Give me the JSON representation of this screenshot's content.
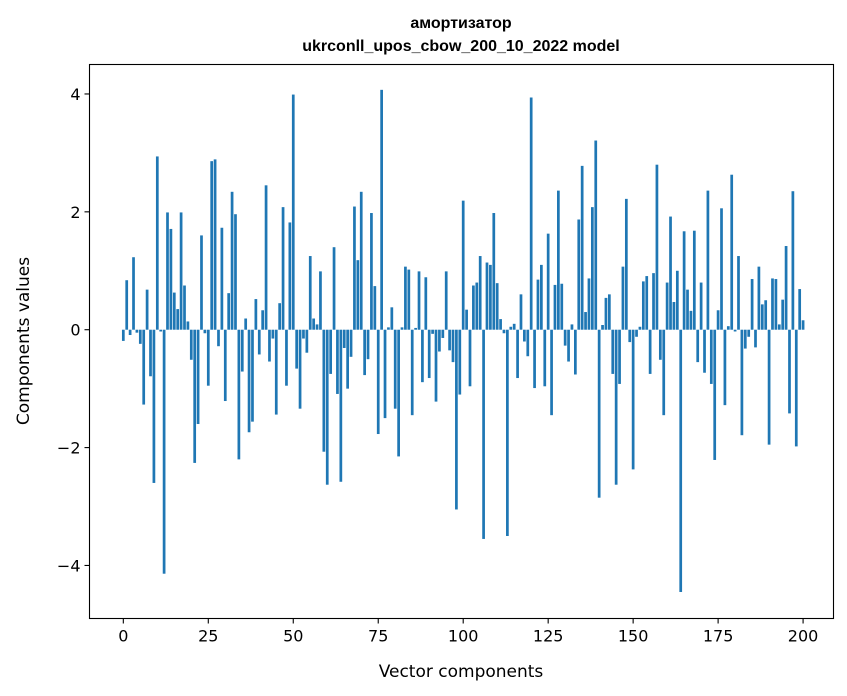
{
  "chart_data": {
    "type": "bar",
    "title": "амортизатор",
    "subtitle": "ukrconll_upos_cbow_200_10_2022 model",
    "xlabel": "Vector components",
    "ylabel": "Components values",
    "xlim": [
      -9.95,
      208.95
    ],
    "ylim": [
      -4.9,
      4.5
    ],
    "xticks": [
      0,
      25,
      50,
      75,
      100,
      125,
      150,
      175,
      200
    ],
    "yticks": [
      -4,
      -2,
      0,
      2,
      4
    ],
    "ytick_labels": [
      "−4",
      "−2",
      "0",
      "2",
      "4"
    ],
    "grid": false,
    "bar_color": "#1f77b4",
    "values": [
      -0.19,
      0.84,
      -0.09,
      1.23,
      -0.05,
      -0.24,
      -1.27,
      0.68,
      -0.79,
      -2.6,
      2.94,
      -0.03,
      -4.14,
      1.99,
      1.71,
      0.63,
      0.35,
      1.99,
      0.75,
      0.14,
      -0.51,
      -2.26,
      -1.6,
      1.6,
      -0.06,
      -0.95,
      2.86,
      2.89,
      -0.28,
      1.73,
      -1.21,
      0.62,
      2.34,
      1.96,
      -2.2,
      -0.71,
      0.19,
      -1.74,
      -1.56,
      0.52,
      -0.42,
      0.33,
      2.45,
      -0.54,
      -0.15,
      -1.44,
      0.45,
      2.08,
      -0.95,
      1.82,
      3.99,
      -0.66,
      -1.34,
      -0.15,
      -0.39,
      1.25,
      0.19,
      0.09,
      0.99,
      -2.07,
      -2.63,
      -0.75,
      1.4,
      -1.09,
      -2.58,
      -0.31,
      -1.0,
      -0.46,
      2.09,
      1.18,
      2.34,
      -0.77,
      -0.5,
      1.98,
      0.74,
      -1.77,
      4.07,
      -1.5,
      0.04,
      0.38,
      -1.34,
      -2.15,
      0.04,
      1.07,
      1.02,
      -1.45,
      0.03,
      0.99,
      -0.89,
      0.89,
      -0.82,
      -0.07,
      -1.22,
      -0.37,
      -0.14,
      0.99,
      -0.35,
      -0.55,
      -3.05,
      -1.1,
      2.19,
      0.34,
      -0.96,
      0.75,
      0.8,
      1.25,
      -3.55,
      1.14,
      1.1,
      1.98,
      0.79,
      0.18,
      -0.06,
      -3.5,
      0.05,
      0.1,
      -0.82,
      0.6,
      -0.2,
      -0.45,
      3.94,
      -0.99,
      0.85,
      1.1,
      -0.96,
      1.63,
      -1.45,
      0.76,
      2.36,
      0.78,
      -0.27,
      -0.54,
      0.09,
      -0.76,
      1.87,
      2.78,
      0.3,
      0.87,
      2.08,
      3.21,
      -2.85,
      0.08,
      0.54,
      0.6,
      -0.75,
      -2.63,
      -0.92,
      1.07,
      2.22,
      -0.21,
      -2.37,
      -0.12,
      0.05,
      0.82,
      0.91,
      -0.75,
      0.96,
      2.8,
      -0.51,
      -1.45,
      0.8,
      1.92,
      0.47,
      1.0,
      -4.45,
      1.67,
      0.68,
      0.32,
      1.68,
      -0.55,
      0.8,
      -0.73,
      2.36,
      -0.92,
      -2.21,
      0.33,
      2.06,
      -1.28,
      0.06,
      2.63,
      -0.03,
      1.25,
      -1.79,
      -0.32,
      -0.12,
      0.86,
      -0.3,
      1.07,
      0.43,
      0.5,
      -1.95,
      0.87,
      0.86,
      0.09,
      0.51,
      1.42,
      -1.42,
      2.35,
      -1.98,
      0.69,
      0.16
    ]
  }
}
